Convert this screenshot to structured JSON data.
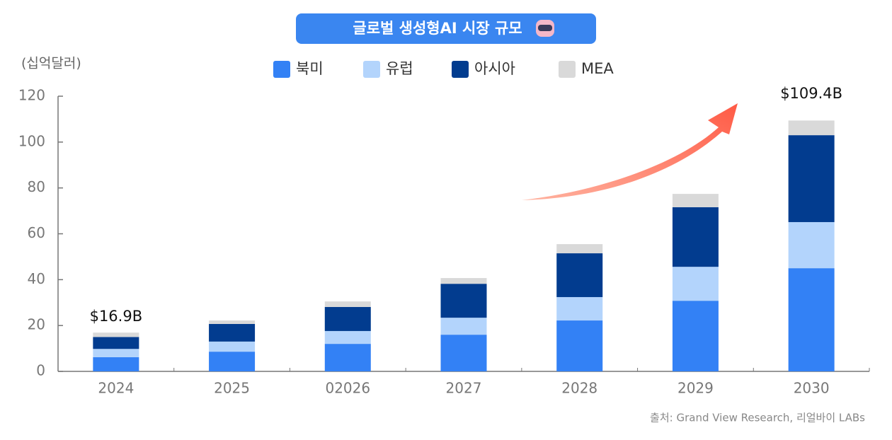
{
  "chart_data": {
    "type": "stacked_bar",
    "title": "글로벌 생성형AI 시장 규모",
    "y_label": "(십억달러)",
    "categories": [
      "2024",
      "2025",
      "02026",
      "2027",
      "2028",
      "2029",
      "2030"
    ],
    "series": [
      {
        "name": "북미",
        "color": "#3381f5",
        "values": [
          6.2,
          8.6,
          12.0,
          16.0,
          22.2,
          30.8,
          45.0
        ]
      },
      {
        "name": "유럽",
        "color": "#b3d4fc",
        "values": [
          3.6,
          4.4,
          5.6,
          7.4,
          10.2,
          14.8,
          20.1
        ]
      },
      {
        "name": "아시아",
        "color": "#023c8f",
        "values": [
          5.2,
          7.7,
          10.5,
          14.8,
          19.1,
          26.0,
          37.9
        ]
      },
      {
        "name": "MEA",
        "color": "#d9d9d9",
        "values": [
          1.9,
          1.5,
          2.4,
          2.5,
          4.0,
          5.8,
          6.4
        ]
      }
    ],
    "ylim": [
      0,
      120
    ],
    "yticks": [
      0,
      20,
      40,
      60,
      80,
      100,
      120
    ],
    "annotations": [
      "$16.9B",
      "$109.4B"
    ],
    "source": "출처: Grand View Research, 리얼바이 LABs"
  }
}
